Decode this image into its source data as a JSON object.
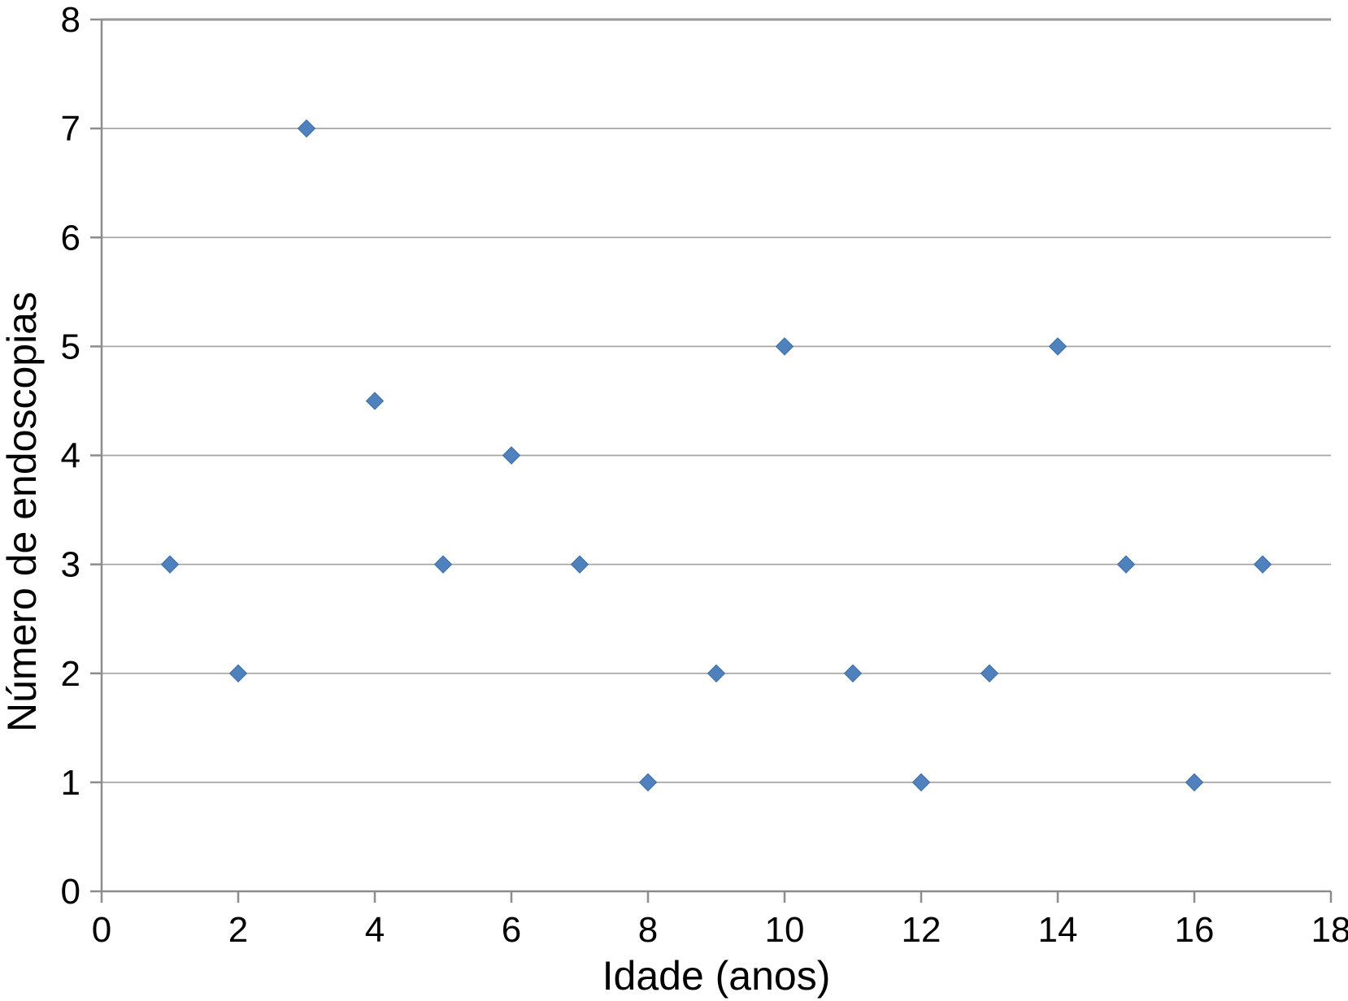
{
  "chart_data": {
    "type": "scatter",
    "title": "",
    "xlabel": "Idade (anos)",
    "ylabel": "Número de endoscopias",
    "xlim": [
      0,
      18
    ],
    "ylim": [
      0,
      8
    ],
    "xticks": [
      0,
      2,
      4,
      6,
      8,
      10,
      12,
      14,
      16,
      18
    ],
    "yticks": [
      0,
      1,
      2,
      3,
      4,
      5,
      6,
      7,
      8
    ],
    "grid": "horizontal-only",
    "legend": "none",
    "marker": "diamond",
    "marker_color": "#4F81BD",
    "marker_edge_color": "#3D6EA5",
    "gridline_color": "#A6A6A6",
    "top_border_color": "#969696",
    "axis_color": "#8C8C8C",
    "points": [
      {
        "x": 1,
        "y": 3
      },
      {
        "x": 2,
        "y": 2
      },
      {
        "x": 3,
        "y": 7
      },
      {
        "x": 4,
        "y": 4.5
      },
      {
        "x": 5,
        "y": 3
      },
      {
        "x": 6,
        "y": 4
      },
      {
        "x": 7,
        "y": 3
      },
      {
        "x": 8,
        "y": 1
      },
      {
        "x": 9,
        "y": 2
      },
      {
        "x": 10,
        "y": 5
      },
      {
        "x": 11,
        "y": 2
      },
      {
        "x": 12,
        "y": 1
      },
      {
        "x": 13,
        "y": 2
      },
      {
        "x": 14,
        "y": 5
      },
      {
        "x": 15,
        "y": 3
      },
      {
        "x": 16,
        "y": 1
      },
      {
        "x": 17,
        "y": 3
      }
    ]
  }
}
